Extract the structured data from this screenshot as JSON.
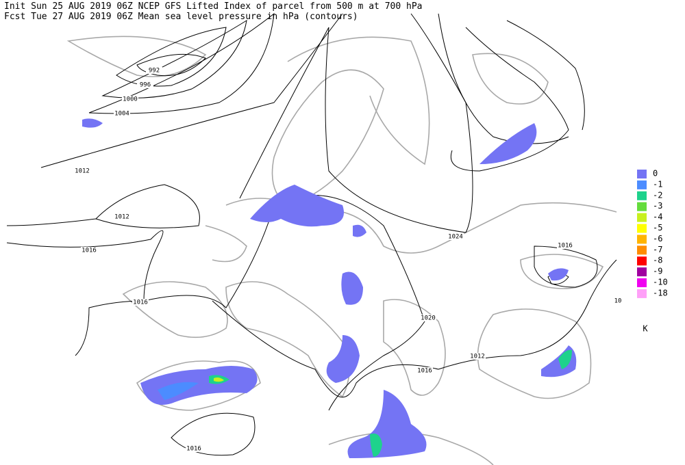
{
  "header": {
    "line1": "Init  Sun 25 AUG 2019 06Z  NCEP GFS Lifted Index of parcel from 500 m at 700 hPa",
    "line2": "Fcst Tue 27 AUG 2019 06Z  Mean sea level pressure in hPa (contours)"
  },
  "contour_labels": [
    "992",
    "996",
    "1000",
    "1004",
    "1012",
    "1012",
    "1016",
    "1024",
    "1016",
    "1016",
    "1020",
    "1012",
    "1016",
    "1016",
    "10"
  ],
  "legend": {
    "items": [
      {
        "label": "0",
        "color": "#7474f4"
      },
      {
        "label": "-1",
        "color": "#4c8cff"
      },
      {
        "label": "-2",
        "color": "#1ed28c"
      },
      {
        "label": "-3",
        "color": "#64dc3c"
      },
      {
        "label": "-4",
        "color": "#c8f01e"
      },
      {
        "label": "-5",
        "color": "#ffff00"
      },
      {
        "label": "-6",
        "color": "#ffb400"
      },
      {
        "label": "-7",
        "color": "#ff8c00"
      },
      {
        "label": "-8",
        "color": "#ff0000"
      },
      {
        "label": "-9",
        "color": "#a000a0"
      },
      {
        "label": "-10",
        "color": "#f000f0"
      },
      {
        "label": "-18",
        "color": "#ffa0f8"
      }
    ],
    "unit": "K"
  }
}
